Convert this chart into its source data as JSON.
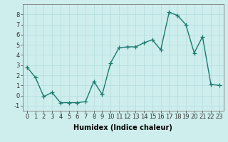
{
  "x": [
    0,
    1,
    2,
    3,
    4,
    5,
    6,
    7,
    8,
    9,
    10,
    11,
    12,
    13,
    14,
    15,
    16,
    17,
    18,
    19,
    20,
    21,
    22,
    23
  ],
  "y": [
    2.8,
    1.8,
    -0.1,
    0.3,
    -0.7,
    -0.7,
    -0.7,
    -0.6,
    1.4,
    0.1,
    3.2,
    4.7,
    4.8,
    4.8,
    5.2,
    5.5,
    4.5,
    8.2,
    7.9,
    7.0,
    4.2,
    5.8,
    1.1,
    1.0
  ],
  "line_color": "#1a7a6e",
  "marker": "+",
  "marker_size": 4,
  "linewidth": 1.0,
  "background_color": "#ceeeed",
  "grid_color": "#b8dede",
  "xlabel": "Humidex (Indice chaleur)",
  "xlim": [
    -0.5,
    23.5
  ],
  "ylim": [
    -1.5,
    9.0
  ],
  "yticks": [
    -1,
    0,
    1,
    2,
    3,
    4,
    5,
    6,
    7,
    8
  ],
  "tick_fontsize": 6,
  "xlabel_fontsize": 7
}
